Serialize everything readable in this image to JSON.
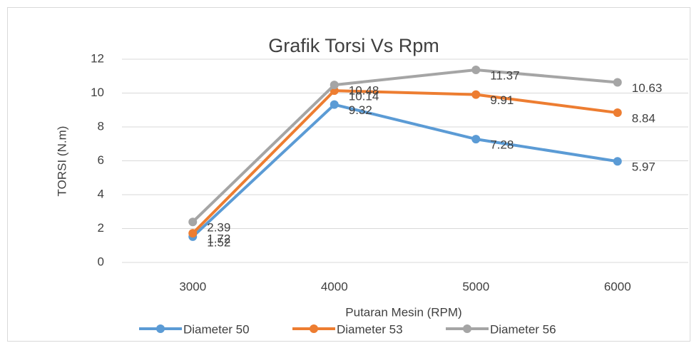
{
  "chart_data": {
    "type": "line",
    "title": "Grafik Torsi Vs Rpm",
    "x_label": "Putaran Mesin (RPM)",
    "y_label": "TORSI (N.m)",
    "categories": [
      "3000",
      "4000",
      "5000",
      "6000"
    ],
    "series": [
      {
        "name": "Diameter 50",
        "color": "#5b9bd5",
        "values": [
          1.52,
          9.32,
          7.28,
          5.97
        ]
      },
      {
        "name": "Diameter 53",
        "color": "#ed7d31",
        "values": [
          1.72,
          10.14,
          9.91,
          8.84
        ]
      },
      {
        "name": "Diameter 56",
        "color": "#a5a5a5",
        "values": [
          2.39,
          10.48,
          11.37,
          10.63
        ]
      }
    ],
    "ylim": [
      0,
      12
    ],
    "yticks": [
      0,
      2,
      4,
      6,
      8,
      10,
      12
    ],
    "grid": true,
    "legend": "bottom"
  }
}
